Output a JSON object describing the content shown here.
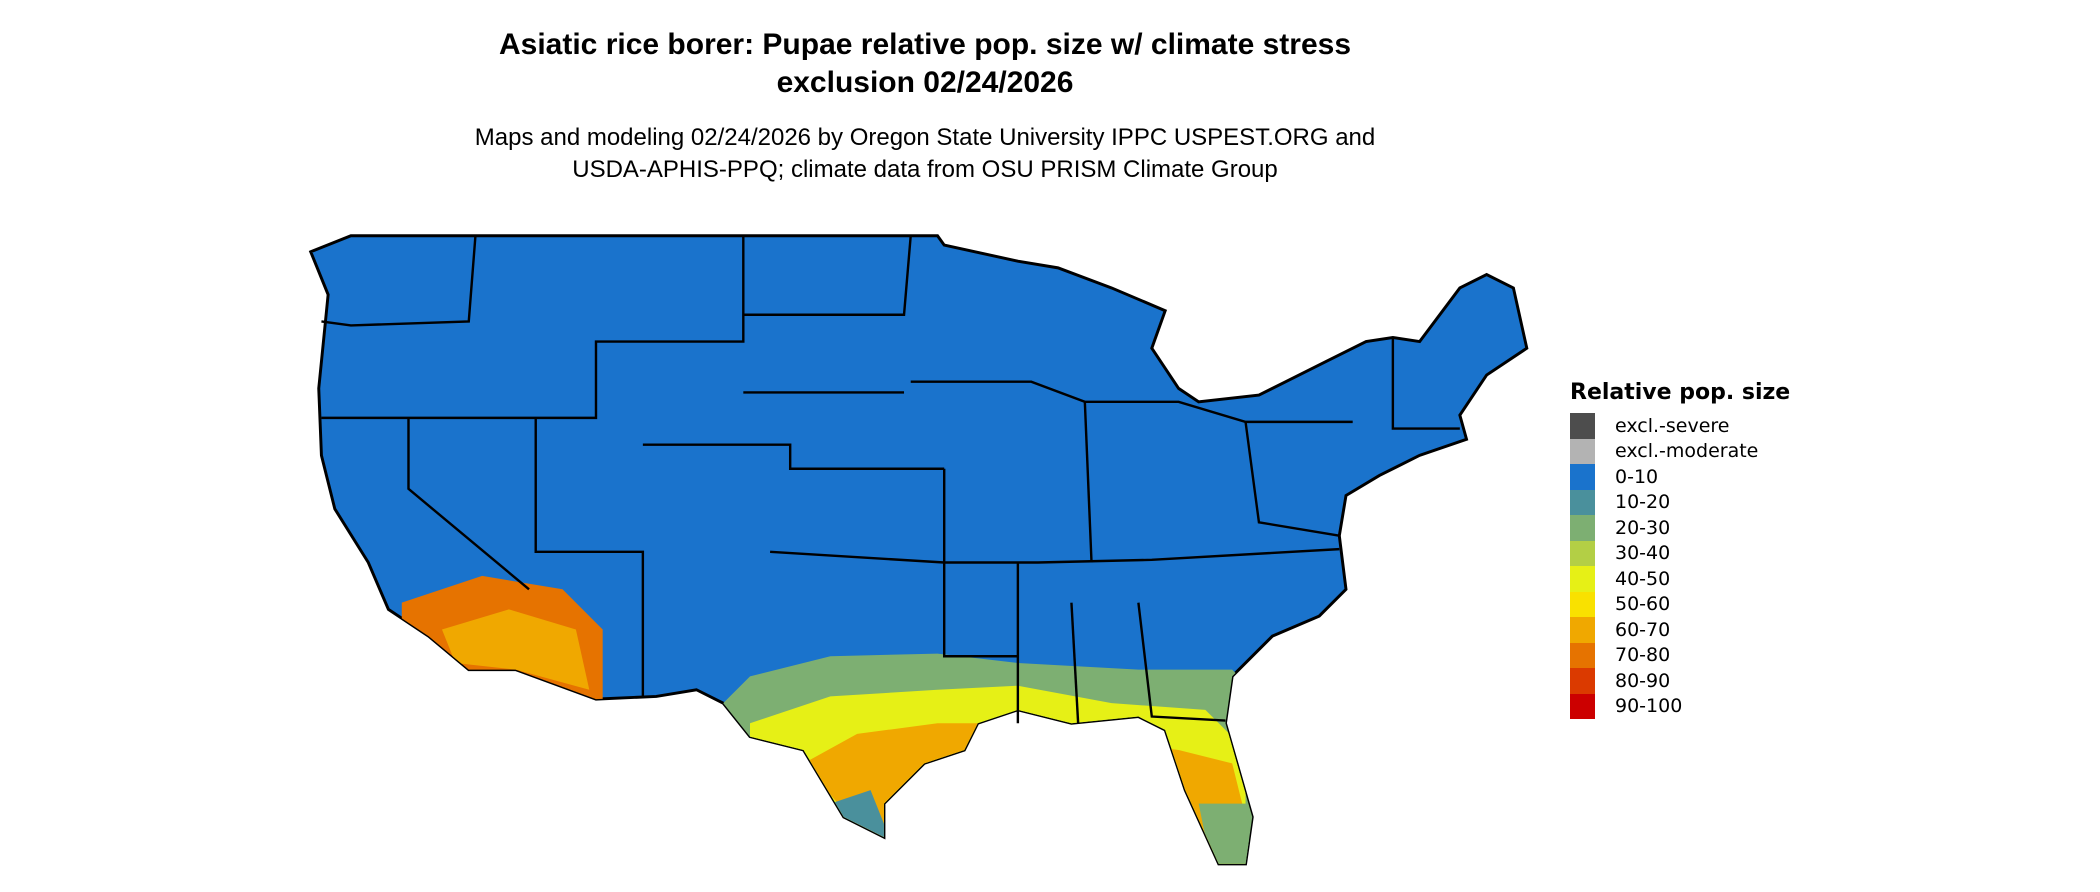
{
  "title_line1": "Asiatic rice borer: Pupae relative pop. size w/ climate stress",
  "title_line2": "exclusion 02/24/2026",
  "subtitle_line1": "Maps and modeling 02/24/2026 by Oregon State University IPPC USPEST.ORG and",
  "subtitle_line2": "USDA-APHIS-PPQ; climate data from OSU PRISM Climate Group",
  "map": {
    "region": "Contiguous United States",
    "base_color": "#1a73cc",
    "border_color": "#000000"
  },
  "legend": {
    "title": "Relative pop. size",
    "items": [
      {
        "label": "excl.-severe",
        "color": "#4d4d4d"
      },
      {
        "label": "excl.-moderate",
        "color": "#b3b3b3"
      },
      {
        "label": "0-10",
        "color": "#1a73cc"
      },
      {
        "label": "10-20",
        "color": "#4a909c"
      },
      {
        "label": "20-30",
        "color": "#7daf72"
      },
      {
        "label": "30-40",
        "color": "#b3cf45"
      },
      {
        "label": "40-50",
        "color": "#e6f016"
      },
      {
        "label": "50-60",
        "color": "#f9e100"
      },
      {
        "label": "60-70",
        "color": "#f0a800"
      },
      {
        "label": "70-80",
        "color": "#e67300"
      },
      {
        "label": "80-90",
        "color": "#db3a00"
      },
      {
        "label": "90-100",
        "color": "#cc0000"
      }
    ]
  }
}
